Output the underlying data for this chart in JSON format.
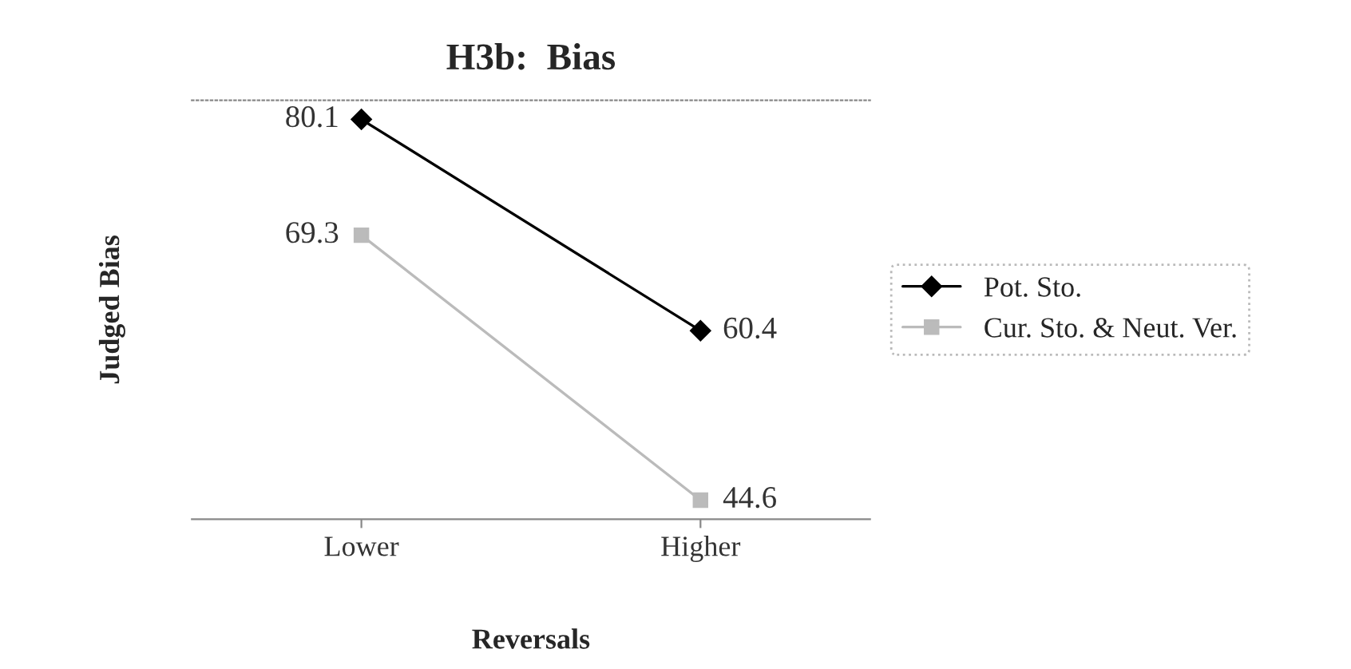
{
  "chart_data": {
    "type": "line",
    "title": "H3b:  Bias",
    "xlabel": "Reversals",
    "ylabel": "Judged Bias",
    "categories": [
      "Lower",
      "Higher"
    ],
    "series": [
      {
        "name": "Pot. Sto.",
        "color": "#000000",
        "marker": "diamond",
        "values": [
          80.1,
          60.4
        ]
      },
      {
        "name": "Cur. Sto. & Neut. Ver.",
        "color": "#bbbbbb",
        "marker": "square",
        "values": [
          69.3,
          44.6
        ]
      }
    ],
    "data_labels": true,
    "tick_labels": "x",
    "grid": false,
    "legend": "right",
    "line_style": "solid"
  }
}
